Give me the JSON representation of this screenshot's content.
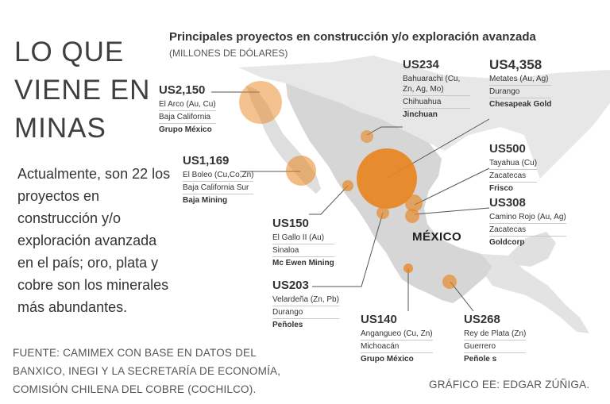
{
  "header": {
    "title": "LO QUE VIENE EN MINAS",
    "chart_title": "Principales proyectos en construcción y/o exploración avanzada",
    "chart_subtitle": "(MILLONES DE DÓLARES)"
  },
  "intro": "Actualmente, son 22 los proyectos en construcción y/o exploración avanzada en el país; oro, plata y cobre son los minerales más abundantes.",
  "map": {
    "country_label": "MÉXICO"
  },
  "colors": {
    "bubble": "#e8861f",
    "land": "#dcdcdc",
    "leader": "#555555"
  },
  "footer": {
    "source": "FUENTE: CAMIMEX CON BASE EN DATOS DEL BANXICO, INEGI Y LA SECRETARÍA DE ECONOMÍA, COMISIÓN CHILENA DEL COBRE (COCHILCO).",
    "credit": "GRÁFICO EE: EDGAR ZÚÑIGA."
  },
  "projects": [
    {
      "amount": "US2,150",
      "name": "El Arco (Au, Cu)",
      "state": "Baja California",
      "company": "Grupo México"
    },
    {
      "amount": "US1,169",
      "name": "El Boleo (Cu,Co,Zn)",
      "state": "Baja California Sur",
      "company": "Baja Mining"
    },
    {
      "amount": "US150",
      "name": "El Gallo II (Au)",
      "state": "Sinaloa",
      "company": "Mc Ewen Mining"
    },
    {
      "amount": "US203",
      "name": "Velardeña (Zn, Pb)",
      "state": "Durango",
      "company": "Peñoles"
    },
    {
      "amount": "US234",
      "name": "Bahuarachi (Cu, Zn, Ag, Mo)",
      "state": "Chihuahua",
      "company": "Jinchuan"
    },
    {
      "amount": "US4,358",
      "name": "Metates (Au, Ag)",
      "state": "Durango",
      "company": "Chesapeak Gold"
    },
    {
      "amount": "US500",
      "name": "Tayahua (Cu)",
      "state": "Zacatecas",
      "company": "Frisco"
    },
    {
      "amount": "US308",
      "name": "Camino Rojo (Au, Ag)",
      "state": "Zacatecas",
      "company": "Goldcorp"
    },
    {
      "amount": "US140",
      "name": "Angangueo (Cu, Zn)",
      "state": "Michoacán",
      "company": "Grupo México"
    },
    {
      "amount": "US268",
      "name": "Rey de Plata (Zn)",
      "state": "Guerrero",
      "company": "Peñole s"
    }
  ],
  "chart_data": {
    "type": "bubble-map",
    "title": "Principales proyectos en construcción y/o exploración avanzada",
    "unit": "(MILLONES DE DÓLARES)",
    "categories": [
      "El Arco",
      "El Boleo",
      "El Gallo II",
      "Velardeña",
      "Bahuarachi",
      "Metates",
      "Tayahua",
      "Camino Rojo",
      "Angangueo",
      "Rey de Plata"
    ],
    "values": [
      2150,
      1169,
      150,
      203,
      234,
      4358,
      500,
      308,
      140,
      268
    ]
  }
}
